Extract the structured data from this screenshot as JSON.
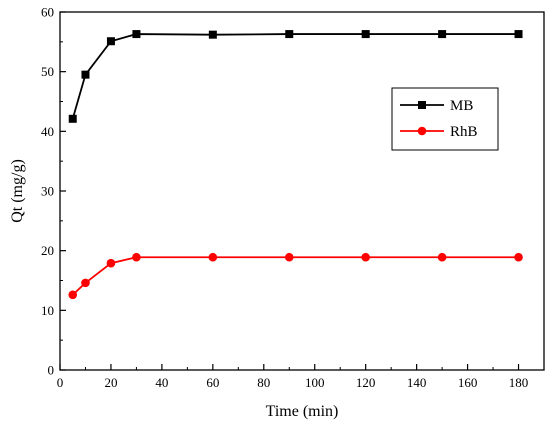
{
  "chart_data": {
    "type": "line",
    "xlabel": "Time (min)",
    "ylabel": "Qt (mg/g)",
    "xlim": [
      0,
      190
    ],
    "ylim": [
      0,
      60
    ],
    "xticks": [
      0,
      20,
      40,
      60,
      80,
      100,
      120,
      140,
      160,
      180
    ],
    "yticks": [
      0,
      10,
      20,
      30,
      40,
      50,
      60
    ],
    "legend_position": "top-right",
    "grid": false,
    "series": [
      {
        "name": "MB",
        "color": "#000000",
        "marker": "square",
        "x": [
          5,
          10,
          20,
          30,
          60,
          90,
          120,
          150,
          180
        ],
        "y": [
          42.1,
          49.5,
          55.1,
          56.3,
          56.2,
          56.3,
          56.3,
          56.3,
          56.3
        ]
      },
      {
        "name": "RhB",
        "color": "#ff0000",
        "marker": "circle",
        "x": [
          5,
          10,
          20,
          30,
          60,
          90,
          120,
          150,
          180
        ],
        "y": [
          12.6,
          14.6,
          17.9,
          18.9,
          18.9,
          18.9,
          18.9,
          18.9,
          18.9
        ]
      }
    ]
  }
}
